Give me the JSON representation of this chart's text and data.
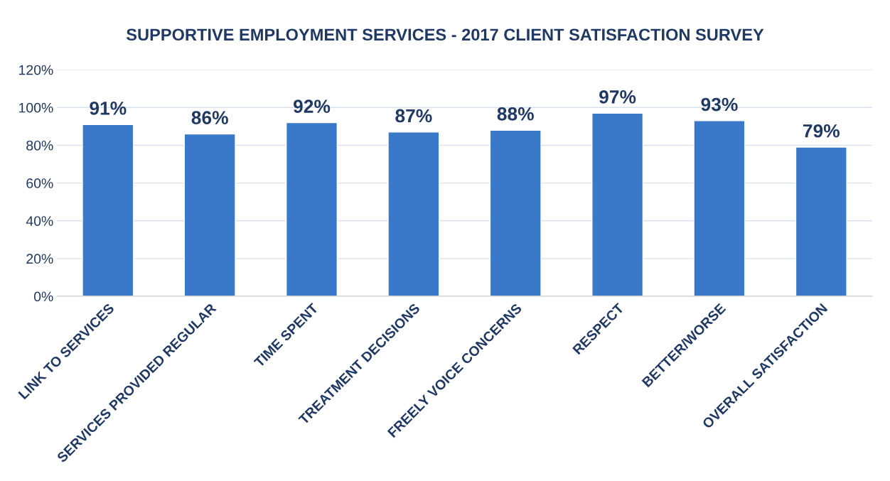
{
  "chart_data": {
    "type": "bar",
    "title": "SUPPORTIVE EMPLOYMENT SERVICES - 2017 CLIENT SATISFACTION SURVEY",
    "categories": [
      "LINK TO SERVICES",
      "SERVICES PROVIDED REGULAR",
      "TIME SPENT",
      "TREATMENT DECISIONS",
      "FREELY VOICE CONCERNS",
      "RESPECT",
      "BETTER/WORSE",
      "OVERALL SATISFACTION"
    ],
    "values": [
      91,
      86,
      92,
      87,
      88,
      97,
      93,
      79
    ],
    "value_labels": [
      "91%",
      "86%",
      "92%",
      "87%",
      "88%",
      "97%",
      "93%",
      "79%"
    ],
    "color": "#3a78c9",
    "ylim": [
      0,
      120
    ],
    "yticks": [
      {
        "value": 0,
        "label": "0%"
      },
      {
        "value": 20,
        "label": "20%"
      },
      {
        "value": 40,
        "label": "40%"
      },
      {
        "value": 60,
        "label": "60%"
      },
      {
        "value": 80,
        "label": "80%"
      },
      {
        "value": 100,
        "label": "100%"
      },
      {
        "value": 120,
        "label": "120%"
      }
    ],
    "grid": "y",
    "legend": false
  }
}
